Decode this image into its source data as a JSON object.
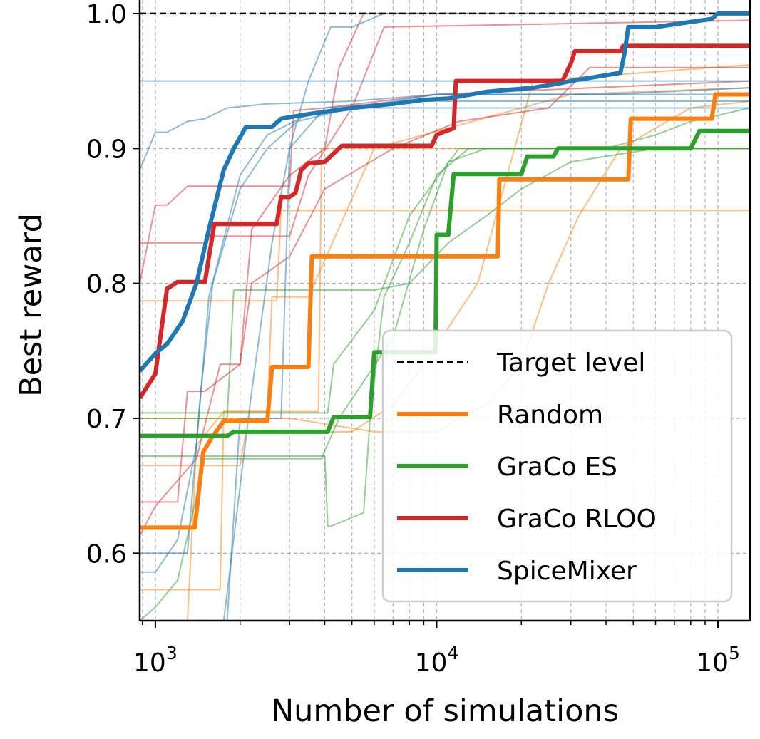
{
  "chart_data": {
    "type": "line",
    "xlabel": "Number of simulations",
    "ylabel": "Best reward",
    "xscale": "log",
    "xlim": [
      880,
      130000
    ],
    "ylim": [
      0.55,
      1.01
    ],
    "grid": true,
    "legend_placement": "lower-right",
    "x_ticks": [
      {
        "value": 1000,
        "base": "10",
        "exp": "3"
      },
      {
        "value": 10000,
        "base": "10",
        "exp": "4"
      },
      {
        "value": 100000,
        "base": "10",
        "exp": "5"
      }
    ],
    "y_ticks": [
      {
        "value": 0.6,
        "label": "0.6"
      },
      {
        "value": 0.7,
        "label": "0.7"
      },
      {
        "value": 0.8,
        "label": "0.8"
      },
      {
        "value": 0.9,
        "label": "0.9"
      },
      {
        "value": 1.0,
        "label": "1.0"
      }
    ],
    "target": {
      "name": "Target level",
      "value": 1.0,
      "color": "#000000"
    },
    "series": [
      {
        "name": "Random",
        "color": "#ff7f0e",
        "values": [
          [
            880,
            0.619
          ],
          [
            1380,
            0.619
          ],
          [
            1480,
            0.675
          ],
          [
            1580,
            0.685
          ],
          [
            1750,
            0.698
          ],
          [
            2500,
            0.698
          ],
          [
            2600,
            0.738
          ],
          [
            3500,
            0.738
          ],
          [
            3600,
            0.82
          ],
          [
            16500,
            0.82
          ],
          [
            16700,
            0.877
          ],
          [
            48000,
            0.877
          ],
          [
            49000,
            0.922
          ],
          [
            95000,
            0.922
          ],
          [
            98000,
            0.94
          ],
          [
            130000,
            0.94
          ]
        ],
        "runs": [
          [
            [
              880,
              0.55
            ],
            [
              1300,
              0.55
            ],
            [
              1400,
              0.68
            ],
            [
              1750,
              0.705
            ],
            [
              3800,
              0.705
            ],
            [
              3900,
              0.9
            ],
            [
              4500,
              0.9
            ],
            [
              130000,
              0.9
            ]
          ],
          [
            [
              880,
              0.573
            ],
            [
              1700,
              0.573
            ],
            [
              1750,
              0.705
            ],
            [
              2500,
              0.705
            ],
            [
              2600,
              0.79
            ],
            [
              3500,
              0.79
            ],
            [
              6000,
              0.9
            ],
            [
              30000,
              0.94
            ],
            [
              130000,
              0.945
            ]
          ],
          [
            [
              880,
              0.665
            ],
            [
              2000,
              0.665
            ],
            [
              2100,
              0.69
            ],
            [
              3000,
              0.69
            ],
            [
              5000,
              0.69
            ],
            [
              7000,
              0.71
            ],
            [
              9000,
              0.74
            ],
            [
              14000,
              0.8
            ],
            [
              22000,
              0.95
            ],
            [
              130000,
              0.962
            ]
          ],
          [
            [
              880,
              0.787
            ],
            [
              2700,
              0.787
            ],
            [
              2800,
              0.854
            ],
            [
              130000,
              0.854
            ]
          ],
          [
            [
              880,
              0.7
            ],
            [
              3000,
              0.7
            ],
            [
              6000,
              0.69
            ],
            [
              10000,
              0.69
            ],
            [
              12000,
              0.7
            ],
            [
              15000,
              0.71
            ],
            [
              20000,
              0.74
            ],
            [
              25000,
              0.8
            ],
            [
              32000,
              0.85
            ],
            [
              45000,
              0.9
            ],
            [
              60000,
              0.915
            ],
            [
              80000,
              0.93
            ],
            [
              130000,
              0.935
            ]
          ]
        ]
      },
      {
        "name": "GraCo ES",
        "color": "#2ca02c",
        "values": [
          [
            880,
            0.687
          ],
          [
            1800,
            0.687
          ],
          [
            1900,
            0.69
          ],
          [
            4100,
            0.69
          ],
          [
            4300,
            0.701
          ],
          [
            5800,
            0.701
          ],
          [
            6000,
            0.749
          ],
          [
            9900,
            0.749
          ],
          [
            10000,
            0.836
          ],
          [
            11000,
            0.836
          ],
          [
            11500,
            0.881
          ],
          [
            20000,
            0.881
          ],
          [
            21000,
            0.894
          ],
          [
            26000,
            0.894
          ],
          [
            27000,
            0.9
          ],
          [
            80000,
            0.9
          ],
          [
            86000,
            0.913
          ],
          [
            130000,
            0.913
          ]
        ],
        "runs": [
          [
            [
              880,
              0.55
            ],
            [
              1000,
              0.56
            ],
            [
              1200,
              0.58
            ],
            [
              1500,
              0.67
            ],
            [
              3900,
              0.67
            ],
            [
              4000,
              0.676
            ],
            [
              4500,
              0.7
            ],
            [
              7000,
              0.76
            ],
            [
              9000,
              0.84
            ],
            [
              11000,
              0.89
            ],
            [
              15000,
              0.9
            ],
            [
              130000,
              0.9
            ]
          ],
          [
            [
              880,
              0.7
            ],
            [
              1800,
              0.7
            ],
            [
              1900,
              0.795
            ],
            [
              6000,
              0.795
            ],
            [
              8000,
              0.8
            ],
            [
              11000,
              0.83
            ],
            [
              15000,
              0.85
            ],
            [
              20000,
              0.87
            ],
            [
              30000,
              0.89
            ],
            [
              60000,
              0.9
            ],
            [
              130000,
              0.9
            ]
          ],
          [
            [
              880,
              0.704
            ],
            [
              4100,
              0.704
            ],
            [
              4300,
              0.74
            ],
            [
              6000,
              0.78
            ],
            [
              8000,
              0.85
            ],
            [
              12000,
              0.9
            ],
            [
              40000,
              0.9
            ],
            [
              60000,
              0.91
            ],
            [
              80000,
              0.92
            ],
            [
              130000,
              0.93
            ]
          ],
          [
            [
              880,
              0.672
            ],
            [
              4000,
              0.672
            ],
            [
              4100,
              0.62
            ],
            [
              4200,
              0.62
            ],
            [
              5500,
              0.63
            ],
            [
              5800,
              0.7
            ],
            [
              6500,
              0.79
            ],
            [
              8000,
              0.83
            ],
            [
              10000,
              0.88
            ],
            [
              13000,
              0.9
            ],
            [
              130000,
              0.9
            ]
          ]
        ]
      },
      {
        "name": "GraCo RLOO",
        "color": "#d62728",
        "values": [
          [
            880,
            0.715
          ],
          [
            1000,
            0.733
          ],
          [
            1100,
            0.796
          ],
          [
            1200,
            0.801
          ],
          [
            1500,
            0.801
          ],
          [
            1620,
            0.844
          ],
          [
            2700,
            0.844
          ],
          [
            2800,
            0.864
          ],
          [
            3000,
            0.864
          ],
          [
            3150,
            0.867
          ],
          [
            3300,
            0.884
          ],
          [
            3500,
            0.889
          ],
          [
            4000,
            0.89
          ],
          [
            4600,
            0.902
          ],
          [
            9600,
            0.902
          ],
          [
            10000,
            0.91
          ],
          [
            10500,
            0.912
          ],
          [
            11500,
            0.915
          ],
          [
            11700,
            0.95
          ],
          [
            28000,
            0.95
          ],
          [
            30000,
            0.963
          ],
          [
            31000,
            0.972
          ],
          [
            45000,
            0.972
          ],
          [
            46000,
            0.976
          ],
          [
            130000,
            0.976
          ]
        ],
        "runs": [
          [
            [
              880,
              0.8
            ],
            [
              1000,
              0.858
            ],
            [
              1100,
              0.858
            ],
            [
              1300,
              0.872
            ],
            [
              3000,
              0.872
            ],
            [
              3100,
              0.928
            ],
            [
              4000,
              0.93
            ],
            [
              10000,
              0.94
            ],
            [
              130000,
              0.95
            ]
          ],
          [
            [
              880,
              0.613
            ],
            [
              1000,
              0.635
            ],
            [
              1400,
              0.67
            ],
            [
              1700,
              0.74
            ],
            [
              2000,
              0.74
            ],
            [
              2200,
              0.84
            ],
            [
              3000,
              0.88
            ],
            [
              4000,
              0.9
            ],
            [
              4500,
              0.96
            ],
            [
              5500,
              1.0
            ],
            [
              130000,
              1.0
            ]
          ],
          [
            [
              880,
              0.83
            ],
            [
              1500,
              0.83
            ],
            [
              1600,
              0.835
            ],
            [
              3000,
              0.835
            ],
            [
              3500,
              0.88
            ],
            [
              5000,
              0.93
            ],
            [
              6500,
              0.99
            ],
            [
              130000,
              0.995
            ]
          ],
          [
            [
              880,
              0.638
            ],
            [
              1200,
              0.638
            ],
            [
              1300,
              0.72
            ],
            [
              1500,
              0.72
            ],
            [
              2000,
              0.74
            ],
            [
              2200,
              0.8
            ],
            [
              3000,
              0.82
            ],
            [
              4000,
              0.87
            ],
            [
              7000,
              0.9
            ],
            [
              12000,
              0.92
            ],
            [
              25000,
              0.93
            ],
            [
              35000,
              0.96
            ],
            [
              130000,
              0.96
            ]
          ]
        ]
      },
      {
        "name": "SpiceMixer",
        "color": "#1f77b4",
        "values": [
          [
            880,
            0.735
          ],
          [
            1000,
            0.748
          ],
          [
            1100,
            0.755
          ],
          [
            1250,
            0.772
          ],
          [
            1400,
            0.8
          ],
          [
            1550,
            0.84
          ],
          [
            1750,
            0.884
          ],
          [
            1900,
            0.9
          ],
          [
            2100,
            0.916
          ],
          [
            2600,
            0.916
          ],
          [
            2800,
            0.922
          ],
          [
            3400,
            0.925
          ],
          [
            5000,
            0.93
          ],
          [
            7000,
            0.933
          ],
          [
            9000,
            0.936
          ],
          [
            11000,
            0.937
          ],
          [
            15000,
            0.942
          ],
          [
            22000,
            0.945
          ],
          [
            27000,
            0.948
          ],
          [
            30000,
            0.95
          ],
          [
            45000,
            0.956
          ],
          [
            46500,
            0.97
          ],
          [
            48000,
            0.99
          ],
          [
            60000,
            0.99
          ],
          [
            95000,
            0.996
          ],
          [
            100000,
            1.0
          ],
          [
            130000,
            1.0
          ]
        ],
        "runs": [
          [
            [
              880,
              0.884
            ],
            [
              1000,
              0.912
            ],
            [
              1100,
              0.912
            ],
            [
              1300,
              0.92
            ],
            [
              1500,
              0.922
            ],
            [
              1800,
              0.93
            ],
            [
              2500,
              0.933
            ],
            [
              5000,
              0.935
            ],
            [
              10000,
              0.94
            ],
            [
              40000,
              0.94
            ],
            [
              130000,
              0.945
            ]
          ],
          [
            [
              880,
              0.586
            ],
            [
              1000,
              0.586
            ],
            [
              1200,
              0.61
            ],
            [
              1400,
              0.68
            ],
            [
              1550,
              0.79
            ],
            [
              2000,
              0.88
            ],
            [
              2500,
              0.91
            ],
            [
              3500,
              0.925
            ],
            [
              7000,
              0.935
            ],
            [
              10000,
              0.94
            ],
            [
              130000,
              0.94
            ]
          ],
          [
            [
              880,
              0.95
            ],
            [
              2000,
              0.95
            ],
            [
              2500,
              0.95
            ],
            [
              130000,
              0.95
            ]
          ],
          [
            [
              880,
              0.6
            ],
            [
              1300,
              0.6
            ],
            [
              1450,
              0.72
            ],
            [
              1600,
              0.8
            ],
            [
              2000,
              0.87
            ],
            [
              2500,
              0.9
            ],
            [
              3200,
              0.92
            ],
            [
              5000,
              0.93
            ],
            [
              10000,
              0.93
            ],
            [
              130000,
              0.93
            ]
          ],
          [
            [
              1750,
              0.55
            ],
            [
              2200,
              0.72
            ],
            [
              2600,
              0.83
            ],
            [
              3000,
              0.9
            ],
            [
              3500,
              0.95
            ],
            [
              4200,
              0.99
            ],
            [
              5000,
              0.99
            ],
            [
              6500,
              1.0
            ],
            [
              130000,
              1.0
            ]
          ],
          [
            [
              880,
              0.55
            ],
            [
              1800,
              0.55
            ],
            [
              2000,
              0.7
            ],
            [
              2800,
              0.7
            ],
            [
              3000,
              0.9
            ],
            [
              4000,
              0.93
            ],
            [
              8000,
              0.935
            ],
            [
              130000,
              0.935
            ]
          ]
        ]
      }
    ]
  }
}
